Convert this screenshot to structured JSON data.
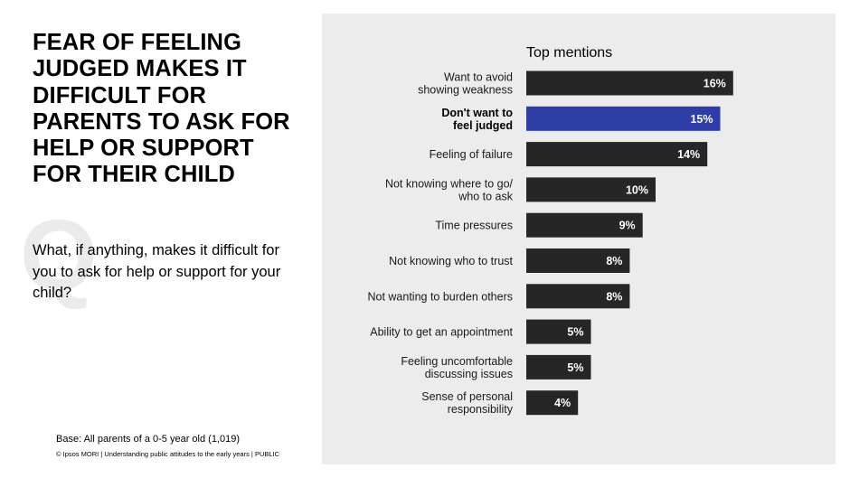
{
  "slide": {
    "title": "FEAR OF FEELING JUDGED MAKES IT DIFFICULT FOR PARENTS TO ASK FOR HELP OR SUPPORT FOR THEIR CHILD",
    "q_mark": "Q",
    "question": "What, if anything, makes it difficult for you to ask for help or support for your child?",
    "base": "Base: All parents of a 0-5 year old (1,019)",
    "footer": "© Ipsos MORI | Understanding public attitudes to the early years | PUBLIC"
  },
  "colors": {
    "bar_default": "#262626",
    "bar_highlight": "#2f3ea6",
    "panel_bg": "#ececec"
  },
  "chart_data": {
    "type": "bar",
    "orientation": "horizontal",
    "title": "Top mentions",
    "unit": "%",
    "categories": [
      [
        "Want to avoid",
        "showing weakness"
      ],
      [
        "Don't want to",
        "feel judged"
      ],
      [
        "Feeling of failure"
      ],
      [
        "Not knowing where to go/",
        "who to ask"
      ],
      [
        "Time pressures"
      ],
      [
        "Not knowing who to trust"
      ],
      [
        "Not wanting to burden others"
      ],
      [
        "Ability to get an appointment"
      ],
      [
        "Feeling uncomfortable",
        "discussing issues"
      ],
      [
        "Sense of personal",
        "responsibility"
      ]
    ],
    "values": [
      16,
      15,
      14,
      10,
      9,
      8,
      8,
      5,
      5,
      4
    ],
    "value_labels": [
      "16%",
      "15%",
      "14%",
      "10%",
      "9%",
      "8%",
      "8%",
      "5%",
      "5%",
      "4%"
    ],
    "highlight_index": 1
  }
}
